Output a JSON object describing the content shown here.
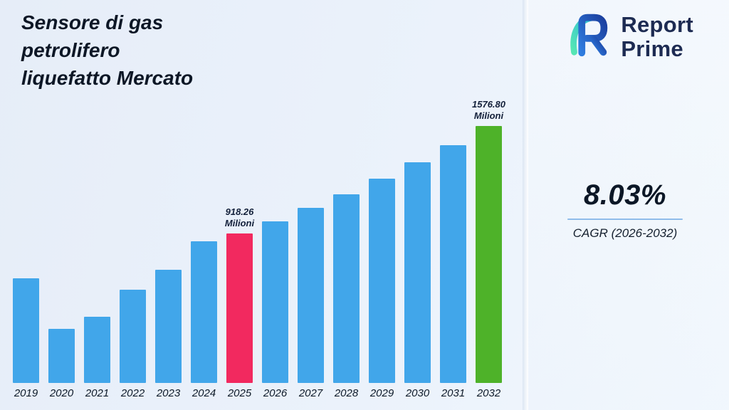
{
  "title": {
    "line1": "Sensore di gas",
    "line2": "petrolifero",
    "line3": "liquefatto Mercato"
  },
  "logo": {
    "brand_top": "Report",
    "brand_bottom": "Prime"
  },
  "stats": {
    "cagr_value": "8.03%",
    "cagr_label": "CAGR (2026-2032)"
  },
  "colors": {
    "bar_blue": "#41a6ea",
    "bar_pink": "#f2295f",
    "bar_green": "#4eb229",
    "underline": "#8fbcea",
    "title_text": "#0d1726",
    "logo_navy": "#1d2b52"
  },
  "chart_data": {
    "type": "bar",
    "title": "Sensore di gas petrolifero liquefatto Mercato",
    "unit": "Milioni",
    "xlabel": "",
    "ylabel": "",
    "ylim": [
      0,
      1650
    ],
    "grid": false,
    "legend": false,
    "categories": [
      "2019",
      "2020",
      "2021",
      "2022",
      "2023",
      "2024",
      "2025",
      "2026",
      "2027",
      "2028",
      "2029",
      "2030",
      "2031",
      "2032"
    ],
    "values": [
      640,
      330,
      405,
      570,
      695,
      870,
      918.26,
      992.0,
      1071.7,
      1157.7,
      1250.7,
      1351.1,
      1459.6,
      1576.8
    ],
    "bars": [
      {
        "year": "2019",
        "value": 640,
        "color": "blue"
      },
      {
        "year": "2020",
        "value": 330,
        "color": "blue"
      },
      {
        "year": "2021",
        "value": 405,
        "color": "blue"
      },
      {
        "year": "2022",
        "value": 570,
        "color": "blue"
      },
      {
        "year": "2023",
        "value": 695,
        "color": "blue"
      },
      {
        "year": "2024",
        "value": 870,
        "color": "blue"
      },
      {
        "year": "2025",
        "value": 918.26,
        "color": "pink",
        "label_value": "918.26",
        "label_unit": "Milioni"
      },
      {
        "year": "2026",
        "value": 992.0,
        "color": "blue"
      },
      {
        "year": "2027",
        "value": 1071.7,
        "color": "blue"
      },
      {
        "year": "2028",
        "value": 1157.7,
        "color": "blue"
      },
      {
        "year": "2029",
        "value": 1250.7,
        "color": "blue"
      },
      {
        "year": "2030",
        "value": 1351.1,
        "color": "blue"
      },
      {
        "year": "2031",
        "value": 1459.6,
        "color": "blue"
      },
      {
        "year": "2032",
        "value": 1576.8,
        "color": "green",
        "label_value": "1576.80",
        "label_unit": "Milioni"
      }
    ]
  }
}
